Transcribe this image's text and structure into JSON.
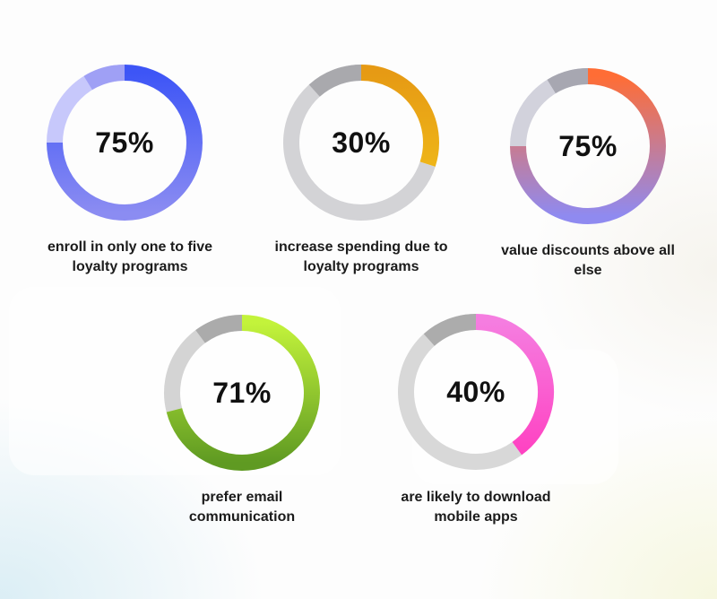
{
  "chart_data": {
    "type": "donut",
    "items": [
      {
        "value_text": "75%",
        "value": 75,
        "label": "enroll in only one to five loyalty programs",
        "colors": {
          "start": "#3d55f6",
          "end": "#8b8cf2",
          "track_light": "#c7c8fb",
          "track_dark": "#9fa0f5"
        }
      },
      {
        "value_text": "30%",
        "value": 30,
        "label": "increase spending due to loyalty programs",
        "colors": {
          "start": "#e69a14",
          "end": "#f2c21a",
          "track_light": "#d3d3d6",
          "track_dark": "#a9a9ad"
        }
      },
      {
        "value_text": "75%",
        "value": 75,
        "label": "value discounts above all else",
        "colors": {
          "start": "#ff6d35",
          "end": "#8f8af0",
          "track_light": "#d2d2dc",
          "track_dark": "#a7a7b1"
        }
      },
      {
        "value_text": "71%",
        "value": 71,
        "label": "prefer email communication",
        "colors": {
          "start": "#c3f33b",
          "end": "#5f9a22",
          "track_light": "#d4d4d4",
          "track_dark": "#ababab"
        }
      },
      {
        "value_text": "40%",
        "value": 40,
        "label": "are likely to download mobile apps",
        "colors": {
          "start": "#f57de0",
          "end": "#ff3ec0",
          "track_light": "#d8d8d8",
          "track_dark": "#acacac"
        }
      }
    ]
  }
}
